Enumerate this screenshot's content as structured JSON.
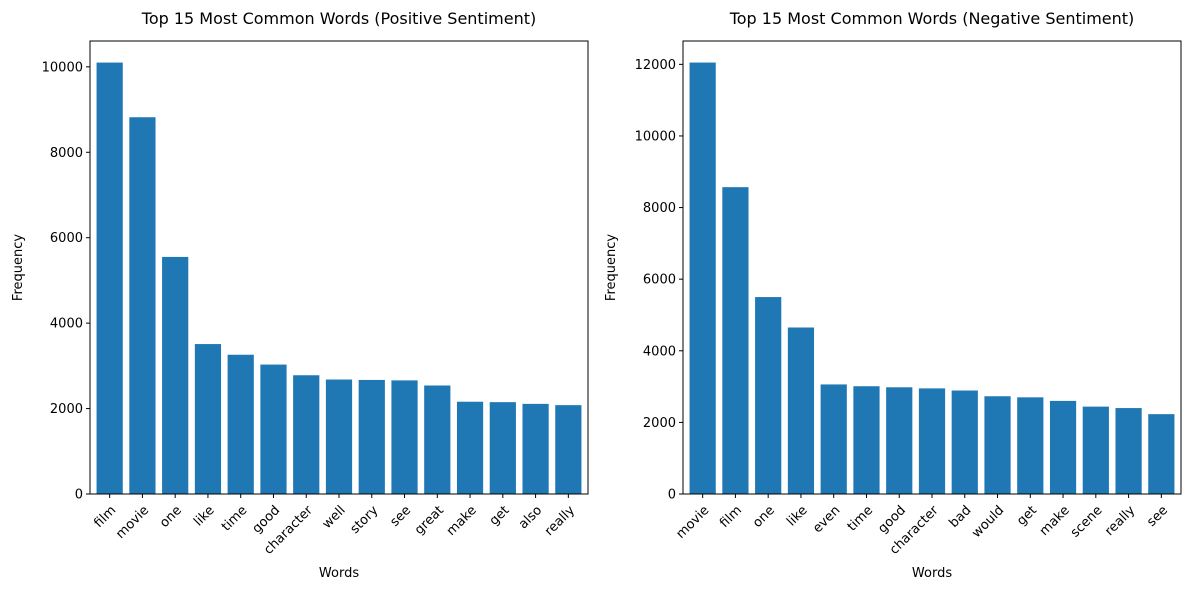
{
  "chart_data": [
    {
      "type": "bar",
      "title": "Top 15 Most Common Words (Positive Sentiment)",
      "xlabel": "Words",
      "ylabel": "Frequency",
      "categories": [
        "film",
        "movie",
        "one",
        "like",
        "time",
        "good",
        "character",
        "well",
        "story",
        "see",
        "great",
        "make",
        "get",
        "also",
        "really"
      ],
      "values": [
        10100,
        8820,
        5550,
        3510,
        3260,
        3030,
        2780,
        2680,
        2670,
        2660,
        2540,
        2160,
        2150,
        2110,
        2080
      ],
      "ylim": [
        0,
        10605
      ],
      "yticks": [
        0,
        2000,
        4000,
        6000,
        8000,
        10000
      ],
      "color": "#1f77b4",
      "grid": false,
      "legend": "none"
    },
    {
      "type": "bar",
      "title": "Top 15 Most Common Words (Negative Sentiment)",
      "xlabel": "Words",
      "ylabel": "Frequency",
      "categories": [
        "movie",
        "film",
        "one",
        "like",
        "even",
        "time",
        "good",
        "character",
        "bad",
        "would",
        "get",
        "make",
        "scene",
        "really",
        "see"
      ],
      "values": [
        12050,
        8570,
        5500,
        4650,
        3060,
        3010,
        2980,
        2950,
        2890,
        2730,
        2700,
        2600,
        2440,
        2400,
        2230
      ],
      "ylim": [
        0,
        12652
      ],
      "yticks": [
        0,
        2000,
        4000,
        6000,
        8000,
        10000,
        12000
      ],
      "color": "#1f77b4",
      "grid": false,
      "legend": "none"
    }
  ]
}
